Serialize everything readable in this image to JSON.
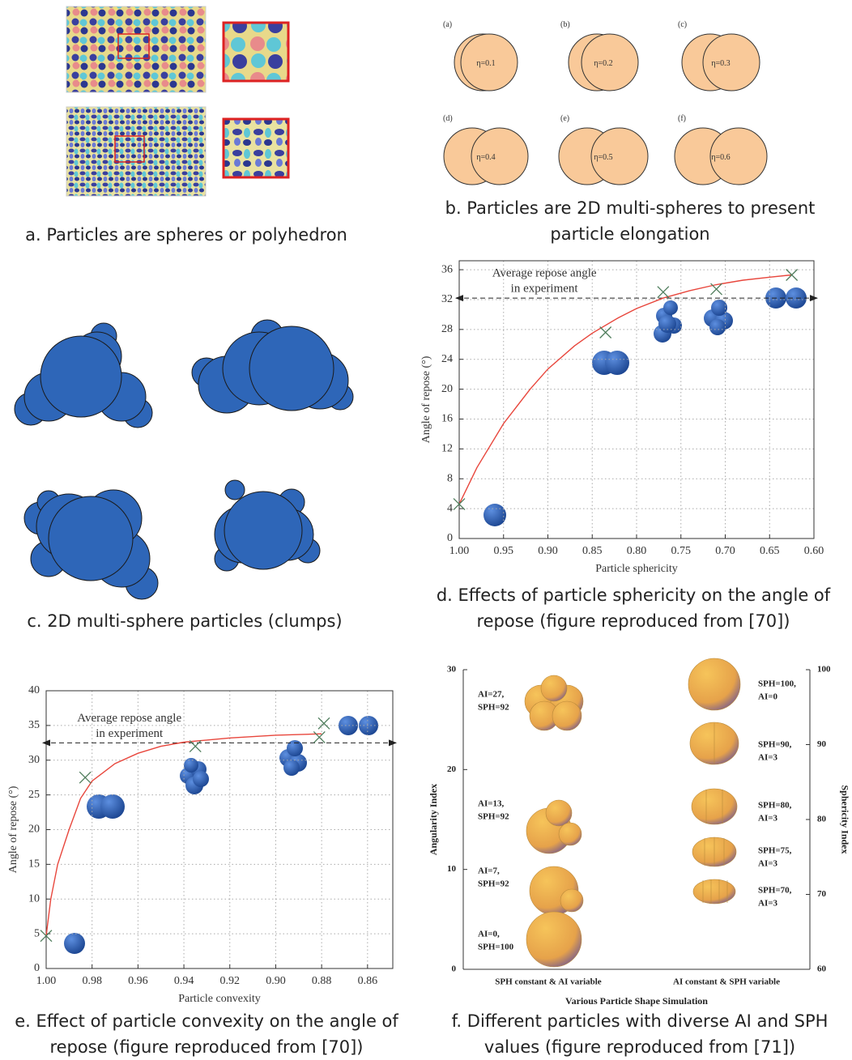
{
  "panels": {
    "a": {
      "caption": [
        "a. Particles are spheres or polyhedron"
      ]
    },
    "b": {
      "caption": [
        "b. Particles are 2D multi-spheres to present",
        "particle elongation"
      ],
      "shapes": [
        {
          "label": "(a)",
          "eta": "η=0.1"
        },
        {
          "label": "(b)",
          "eta": "η=0.2"
        },
        {
          "label": "(c)",
          "eta": "η=0.3"
        },
        {
          "label": "(d)",
          "eta": "η=0.4"
        },
        {
          "label": "(e)",
          "eta": "η=0.5"
        },
        {
          "label": "(f)",
          "eta": "η=0.6"
        }
      ]
    },
    "c": {
      "caption": [
        "c. 2D multi-sphere particles (clumps)"
      ]
    },
    "d": {
      "caption": [
        "d. Effects of particle sphericity on the angle of",
        "repose (figure reproduced from [70])"
      ]
    },
    "e": {
      "caption": [
        "e. Effect of particle convexity on the angle of",
        "repose (figure reproduced from [70])"
      ]
    },
    "f": {
      "caption": [
        "f. Different particles with diverse AI and SPH",
        "values (figure reproduced from [71])"
      ]
    }
  },
  "chart_data": [
    {
      "type": "scatter",
      "x_label": "Particle sphericity",
      "y_label": "Angle of repose (°)",
      "xlim": [
        1.0,
        0.6
      ],
      "ylim": [
        0,
        37.2
      ],
      "xticks": [
        {
          "value": 1.0,
          "label": "1.00"
        },
        0.95,
        {
          "value": 0.9,
          "label": "0.90"
        },
        0.85,
        {
          "value": 0.8,
          "label": "0.80"
        },
        0.75,
        {
          "value": 0.7,
          "label": "0.70"
        },
        0.65,
        {
          "value": 0.6,
          "label": "0.60"
        }
      ],
      "yticks": [
        0,
        4,
        8,
        12,
        16,
        20,
        24,
        28,
        32,
        36
      ],
      "grid": true,
      "markers": {
        "x": [
          1.0,
          0.835,
          0.77,
          0.71,
          0.625
        ],
        "values": [
          4.6,
          27.6,
          33,
          33.4,
          35.3
        ],
        "color": "#4f7d5c"
      },
      "fit": {
        "x": [
          1.0,
          0.98,
          0.95,
          0.92,
          0.9,
          0.87,
          0.85,
          0.82,
          0.8,
          0.77,
          0.74,
          0.71,
          0.68,
          0.65,
          0.625
        ],
        "values": [
          4.6,
          9.5,
          15.4,
          20,
          22.7,
          25.8,
          27.5,
          29.6,
          30.8,
          32.2,
          33.2,
          34,
          34.6,
          35,
          35.3
        ],
        "color": "#e8463c"
      },
      "reference": {
        "value": 32.2,
        "label": [
          "Average repose angle",
          "in experiment"
        ]
      }
    },
    {
      "type": "scatter",
      "x_label": "Particle convexity",
      "y_label": "Angle of repose (°)",
      "xlim": [
        1.0,
        0.849
      ],
      "ylim": [
        0,
        40
      ],
      "xticks": [
        {
          "value": 1.0,
          "label": "1.00"
        },
        0.98,
        0.96,
        0.94,
        0.92,
        {
          "value": 0.9,
          "label": "0.90"
        },
        0.88,
        0.86
      ],
      "yticks": [
        0,
        5,
        10,
        15,
        20,
        25,
        30,
        35,
        40
      ],
      "grid": true,
      "markers": {
        "x": [
          1.0,
          0.983,
          0.935,
          0.881,
          0.879
        ],
        "values": [
          4.7,
          27.5,
          32,
          33.3,
          35.3
        ],
        "color": "#4f7d5c"
      },
      "fit": {
        "x": [
          1.0,
          0.998,
          0.995,
          0.99,
          0.985,
          0.98,
          0.97,
          0.96,
          0.95,
          0.94,
          0.92,
          0.9,
          0.88
        ],
        "values": [
          4.7,
          10,
          15,
          20,
          24.5,
          27,
          29.5,
          31,
          32,
          32.6,
          33.2,
          33.6,
          33.8
        ],
        "color": "#e8463c"
      },
      "reference": {
        "value": 32.5,
        "label": [
          "Average repose angle",
          "in experiment"
        ]
      }
    },
    {
      "type": "axes",
      "x_label": "Various Particle Shape Simulation",
      "y_label": "Angularity Index",
      "y2_label": "Sphericity Index",
      "categories": [
        "SPH constant & AI variable",
        "AI constant & SPH variable"
      ],
      "ylim": [
        0,
        30
      ],
      "yticks": [
        0,
        10,
        20,
        30
      ],
      "y2lim": [
        60,
        100
      ],
      "y2ticks": [
        60,
        70,
        80,
        90,
        100
      ],
      "annotations": [
        [
          "AI=27,",
          "SPH=92"
        ],
        [
          "AI=13,",
          "SPH=92"
        ],
        [
          "AI=7,",
          "SPH=92"
        ],
        [
          "AI=0,",
          "SPH=100"
        ],
        [
          "SPH=100,",
          "AI=0"
        ],
        [
          "SPH=90,",
          "AI=3"
        ],
        [
          "SPH=80,",
          "AI=3"
        ],
        [
          "SPH=75,",
          "AI=3"
        ],
        [
          "SPH=70,",
          "AI=3"
        ]
      ]
    }
  ]
}
